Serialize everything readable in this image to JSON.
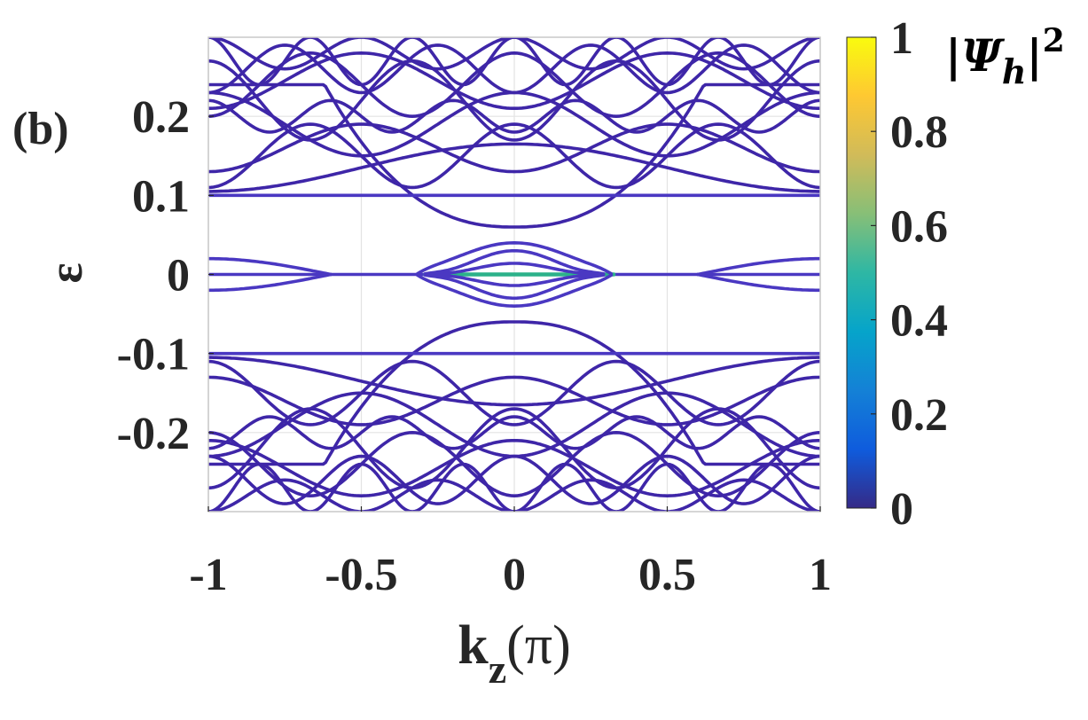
{
  "figure": {
    "panel_label": "(b)",
    "background": "#ffffff"
  },
  "chart_data": {
    "type": "line",
    "title": "",
    "xlabel": "k_z(π)",
    "xlabel_main": "k",
    "xlabel_sub": "z",
    "xlabel_tail": "(π)",
    "ylabel": "ε",
    "xlim": [
      -1,
      1
    ],
    "ylim": [
      -0.3,
      0.3
    ],
    "grid": true,
    "x_ticks": [
      -1,
      -0.5,
      0,
      0.5,
      1
    ],
    "x_tick_labels": [
      "-1",
      "-0.5",
      "0",
      "0.5",
      "1"
    ],
    "y_ticks": [
      -0.2,
      -0.1,
      0,
      0.1,
      0.2
    ],
    "y_tick_labels": [
      "-0.2",
      "-0.1",
      "0",
      "0.1",
      "0.2"
    ],
    "line_color": "#3E26A8",
    "highlight_color": "#2CB28A",
    "colorbar": {
      "title": "|Ψh|²",
      "title_parts": [
        "|",
        "Ψ",
        "h",
        "|",
        "2"
      ],
      "range": [
        0,
        1
      ],
      "ticks": [
        0,
        0.2,
        0.4,
        0.6,
        0.8,
        1
      ],
      "tick_labels": [
        "0",
        "0.2",
        "0.4",
        "0.6",
        "0.8",
        "1"
      ],
      "colormap": "parula",
      "stops": [
        "#352A87",
        "#0F5CDD",
        "#1481D6",
        "#06A4CA",
        "#2EB7A4",
        "#87BF77",
        "#D1BB59",
        "#FEC832",
        "#F9FB0E"
      ]
    },
    "series": [
      {
        "name": "zero-mode",
        "kind": "flat",
        "e0": 0.0,
        "color": "#4A38C2"
      },
      {
        "name": "zero-mode-localized",
        "kind": "segment",
        "e0": 0.0,
        "x_from": -0.3,
        "x_to": 0.33,
        "color": "#2CB28A"
      },
      {
        "name": "gap-band-1",
        "kind": "dome",
        "e0": 0.03,
        "a": 0.01,
        "w": 0.28,
        "edge": 0.32,
        "color": "#4A38C2"
      },
      {
        "name": "gap-band-2",
        "kind": "dome",
        "e0": 0.018,
        "a": 0.012,
        "w": 0.26,
        "edge": 0.3,
        "color": "#4A38C2"
      },
      {
        "name": "gap-band-3",
        "kind": "dome",
        "e0": 0.008,
        "a": 0.006,
        "w": 0.25,
        "edge": 0.3,
        "color": "#4A38C2"
      },
      {
        "name": "gap-band-4",
        "kind": "dome",
        "e0": -0.03,
        "a": -0.01,
        "w": 0.28,
        "edge": 0.32,
        "color": "#4A38C2"
      },
      {
        "name": "gap-band-5",
        "kind": "dome",
        "e0": -0.018,
        "a": -0.012,
        "w": 0.26,
        "edge": 0.3,
        "color": "#4A38C2"
      },
      {
        "name": "gap-band-6",
        "kind": "dome",
        "e0": -0.008,
        "a": -0.006,
        "w": 0.25,
        "edge": 0.3,
        "color": "#4A38C2"
      },
      {
        "name": "edge-arc-left-up",
        "kind": "arc",
        "x0": -1.0,
        "x1": -0.6,
        "e_edge": 0.02,
        "color": "#4A38C2"
      },
      {
        "name": "edge-arc-left-down",
        "kind": "arc",
        "x0": -1.0,
        "x1": -0.6,
        "e_edge": -0.02,
        "color": "#4A38C2"
      },
      {
        "name": "edge-arc-right-up",
        "kind": "arc",
        "x0": 1.0,
        "x1": 0.6,
        "e_edge": 0.02,
        "color": "#4A38C2"
      },
      {
        "name": "edge-arc-right-down",
        "kind": "arc",
        "x0": 1.0,
        "x1": 0.6,
        "e_edge": -0.02,
        "color": "#4A38C2"
      },
      {
        "name": "band-plateau-up",
        "kind": "plateau",
        "c": 0.06,
        "o": 0.24,
        "w": 0.62,
        "color": "#3E26A8"
      },
      {
        "name": "band-plateau-down",
        "kind": "plateau",
        "c": -0.06,
        "o": -0.24,
        "w": 0.62,
        "color": "#3E26A8"
      },
      {
        "name": "band-u1",
        "kind": "cos",
        "c": 0.1,
        "a": 0.0,
        "k": 1,
        "color": "#4A38C2"
      },
      {
        "name": "band-d1",
        "kind": "cos",
        "c": -0.1,
        "a": 0.0,
        "k": 1,
        "color": "#4A38C2"
      },
      {
        "name": "band-u2",
        "kind": "cos",
        "c": 0.16,
        "a": -0.03,
        "k": 2,
        "color": "#3E26A8"
      },
      {
        "name": "band-d2",
        "kind": "cos",
        "c": -0.16,
        "a": 0.03,
        "k": 2,
        "color": "#3E26A8"
      },
      {
        "name": "band-u3",
        "kind": "cos",
        "c": 0.19,
        "a": 0.04,
        "k": 2,
        "color": "#3E26A8"
      },
      {
        "name": "band-d3",
        "kind": "cos",
        "c": -0.19,
        "a": -0.04,
        "k": 2,
        "color": "#3E26A8"
      },
      {
        "name": "band-u4",
        "kind": "cos",
        "c": 0.22,
        "a": -0.05,
        "k": 3,
        "color": "#3E26A8"
      },
      {
        "name": "band-d4",
        "kind": "cos",
        "c": -0.22,
        "a": 0.05,
        "k": 3,
        "color": "#3E26A8"
      },
      {
        "name": "band-u5",
        "kind": "cos",
        "c": 0.24,
        "a": 0.04,
        "k": 3,
        "color": "#3E26A8"
      },
      {
        "name": "band-d5",
        "kind": "cos",
        "c": -0.24,
        "a": -0.04,
        "k": 3,
        "color": "#3E26A8"
      },
      {
        "name": "band-u6",
        "kind": "cos",
        "c": 0.26,
        "a": -0.03,
        "k": 4,
        "color": "#3E26A8"
      },
      {
        "name": "band-d6",
        "kind": "cos",
        "c": -0.26,
        "a": 0.03,
        "k": 4,
        "color": "#3E26A8"
      },
      {
        "name": "band-u7",
        "kind": "cos",
        "c": 0.28,
        "a": 0.02,
        "k": 4,
        "color": "#3E26A8"
      },
      {
        "name": "band-d7",
        "kind": "cos",
        "c": -0.28,
        "a": -0.02,
        "k": 4,
        "color": "#3E26A8"
      },
      {
        "name": "band-u8",
        "kind": "cos",
        "c": 0.15,
        "a": 0.04,
        "k": 3,
        "color": "#3E26A8"
      },
      {
        "name": "band-d8",
        "kind": "cos",
        "c": -0.15,
        "a": -0.04,
        "k": 3,
        "color": "#3E26A8"
      },
      {
        "name": "band-u9",
        "kind": "cos",
        "c": 0.2,
        "a": -0.02,
        "k": 5,
        "color": "#3E26A8"
      },
      {
        "name": "band-d9",
        "kind": "cos",
        "c": -0.2,
        "a": 0.02,
        "k": 5,
        "color": "#3E26A8"
      },
      {
        "name": "band-u10",
        "kind": "cos",
        "c": 0.245,
        "a": -0.035,
        "k": 2,
        "color": "#3E26A8"
      },
      {
        "name": "band-d10",
        "kind": "cos",
        "c": -0.245,
        "a": 0.035,
        "k": 2,
        "color": "#3E26A8"
      },
      {
        "name": "band-u11",
        "kind": "cos",
        "c": 0.27,
        "a": 0.03,
        "k": 6,
        "color": "#3E26A8"
      },
      {
        "name": "band-d11",
        "kind": "cos",
        "c": -0.27,
        "a": -0.03,
        "k": 6,
        "color": "#3E26A8"
      },
      {
        "name": "band-u12",
        "kind": "cos",
        "c": 0.135,
        "a": 0.03,
        "k": 1,
        "color": "#3E26A8"
      },
      {
        "name": "band-d12",
        "kind": "cos",
        "c": -0.135,
        "a": -0.03,
        "k": 1,
        "color": "#3E26A8"
      }
    ]
  }
}
